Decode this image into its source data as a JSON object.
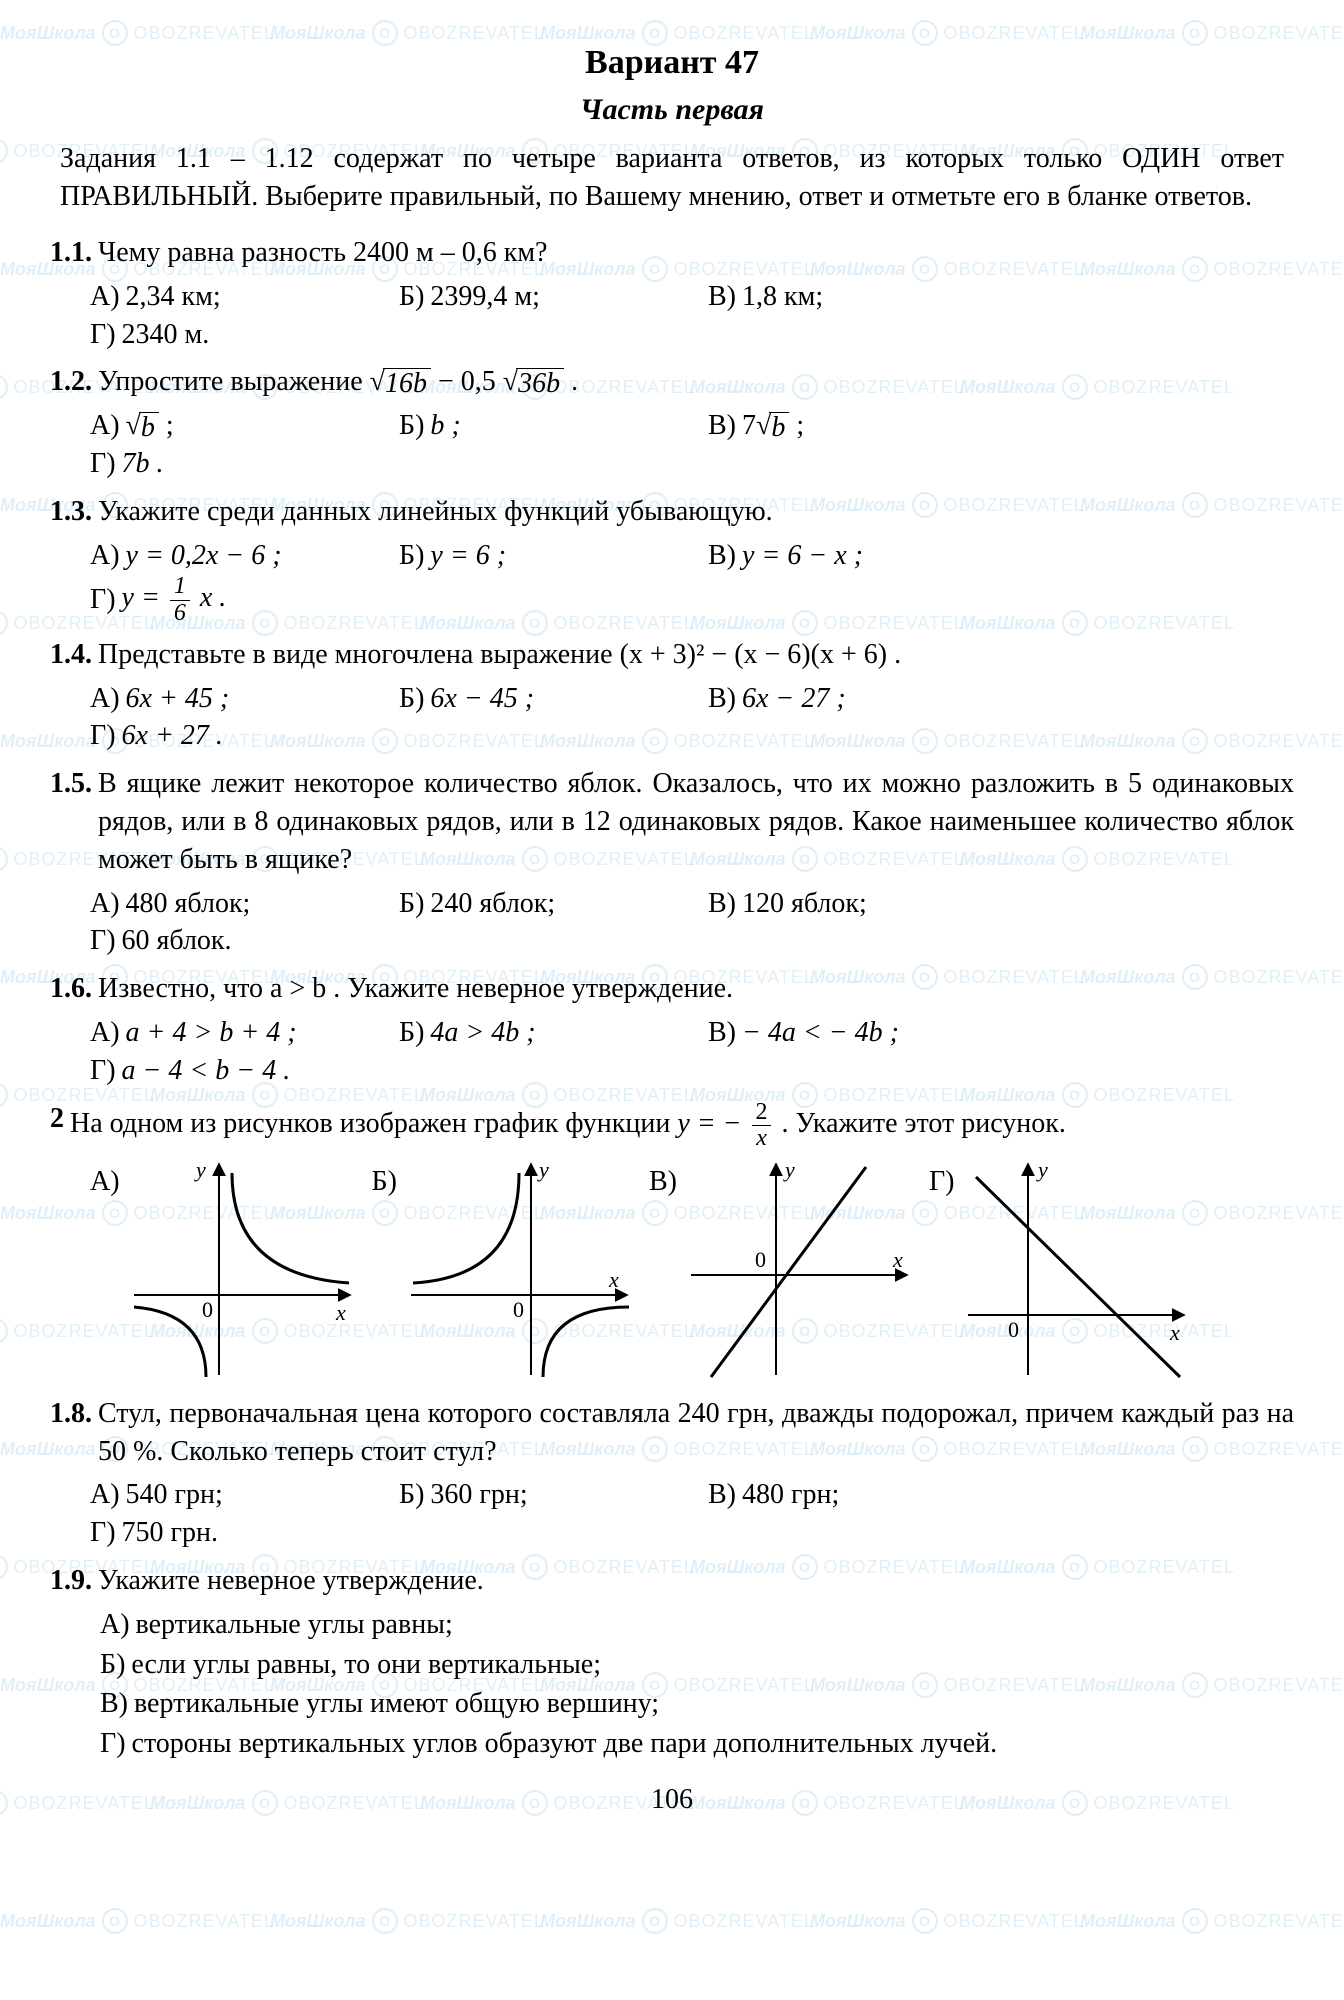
{
  "watermark": {
    "text1": "МояШкола",
    "text2": "OBOZREVATEL",
    "color": "#0a7fc0",
    "opacity": 0.12,
    "rows": 17,
    "cols": 5,
    "hstep": 270,
    "vstep": 118
  },
  "title": "Вариант 47",
  "subtitle": "Часть первая",
  "instructions": "Задания 1.1 – 1.12 содержат по четыре варианта ответов, из которых только ОДИН ответ ПРАВИЛЬНЫЙ. Выберите правильный, по Вашему мнению, ответ и отметьте его в бланке ответов.",
  "page_number": "106",
  "q1": {
    "num": "1.1.",
    "text": "Чему равна разность 2400 м – 0,6 км?",
    "a": "2,34 км;",
    "b": "2399,4 м;",
    "c": "1,8 км;",
    "d": "2340 м."
  },
  "q2": {
    "num": "1.2.",
    "text_pre": "Упростите выражение ",
    "expr_sqrt1": "16b",
    "mid": " − 0,5",
    "expr_sqrt2": "36b",
    "text_post": " .",
    "a_sqrt": "b",
    "a_suffix": " ;",
    "b": "b ;",
    "c_pref": "7",
    "c_sqrt": "b",
    "c_suffix": " ;",
    "d": "7b ."
  },
  "q3": {
    "num": "1.3.",
    "text": "Укажите среди данных линейных функций убывающую.",
    "a": "y = 0,2x − 6 ;",
    "b": "y = 6 ;",
    "c": "y = 6 − x ;",
    "d_pre": "y = ",
    "d_num": "1",
    "d_den": "6",
    "d_post": " x ."
  },
  "q4": {
    "num": "1.4.",
    "text": "Представьте в виде многочлена выражение  (x + 3)² − (x − 6)(x + 6) .",
    "a": "6x + 45 ;",
    "b": "6x − 45 ;",
    "c": "6x − 27 ;",
    "d": "6x + 27 ."
  },
  "q5": {
    "num": "1.5.",
    "text": "В ящике лежит некоторое количество яблок. Оказалось, что их можно разложить в 5 одинаковых рядов, или в 8 одинаковых рядов, или в 12 одинаковых рядов. Какое наименьшее количество яблок может быть в ящике?",
    "a": "480 яблок;",
    "b": "240 яблок;",
    "c": "120 яблок;",
    "d": "60 яблок."
  },
  "q6": {
    "num": "1.6.",
    "text": "Известно, что  a > b . Укажите неверное утверждение.",
    "a": "a + 4 > b + 4 ;",
    "b": "4a > 4b ;",
    "c": "− 4a < − 4b ;",
    "d": "a − 4 < b − 4 ."
  },
  "q7": {
    "num": "2",
    "text_pre": "На одном из рисунков изображен график функции  ",
    "y_pre": "y = − ",
    "den": "x",
    "text_post": " . Укажите этот рисунок.",
    "labels": {
      "a": "А)",
      "b": "Б)",
      "c": "В)",
      "d": "Г)"
    },
    "graphs": {
      "axis_color": "#000000",
      "curve_color": "#000000",
      "axis_width": 2,
      "curve_width": 3,
      "a": {
        "type": "hyperbola_q1_q3",
        "x": "x",
        "y": "y",
        "o": "0"
      },
      "b": {
        "type": "hyperbola_q2_q4",
        "x": "x",
        "y": "y",
        "o": "0"
      },
      "c": {
        "type": "line_pos_slope",
        "x": "x",
        "y": "y",
        "o": "0"
      },
      "d": {
        "type": "line_neg_slope",
        "x": "x",
        "y": "y",
        "o": "0"
      }
    }
  },
  "q8": {
    "num": "1.8.",
    "text": "Стул, первоначальная цена которого составляла 240 грн, дважды подорожал, причем каждый раз на 50 %. Сколько теперь стоит стул?",
    "a": "540 грн;",
    "b": "360 грн;",
    "c": "480 грн;",
    "d": "750 грн."
  },
  "q9": {
    "num": "1.9.",
    "text": "Укажите неверное утверждение.",
    "a": "вертикальные углы равны;",
    "b": "если углы равны, то они вертикальные;",
    "c": "вертикальные углы имеют общую вершину;",
    "d": "стороны вертикальных углов образуют две пари дополнительных лучей."
  },
  "labels": {
    "a": "А)",
    "b": "Б)",
    "c": "В)",
    "d": "Г)"
  }
}
